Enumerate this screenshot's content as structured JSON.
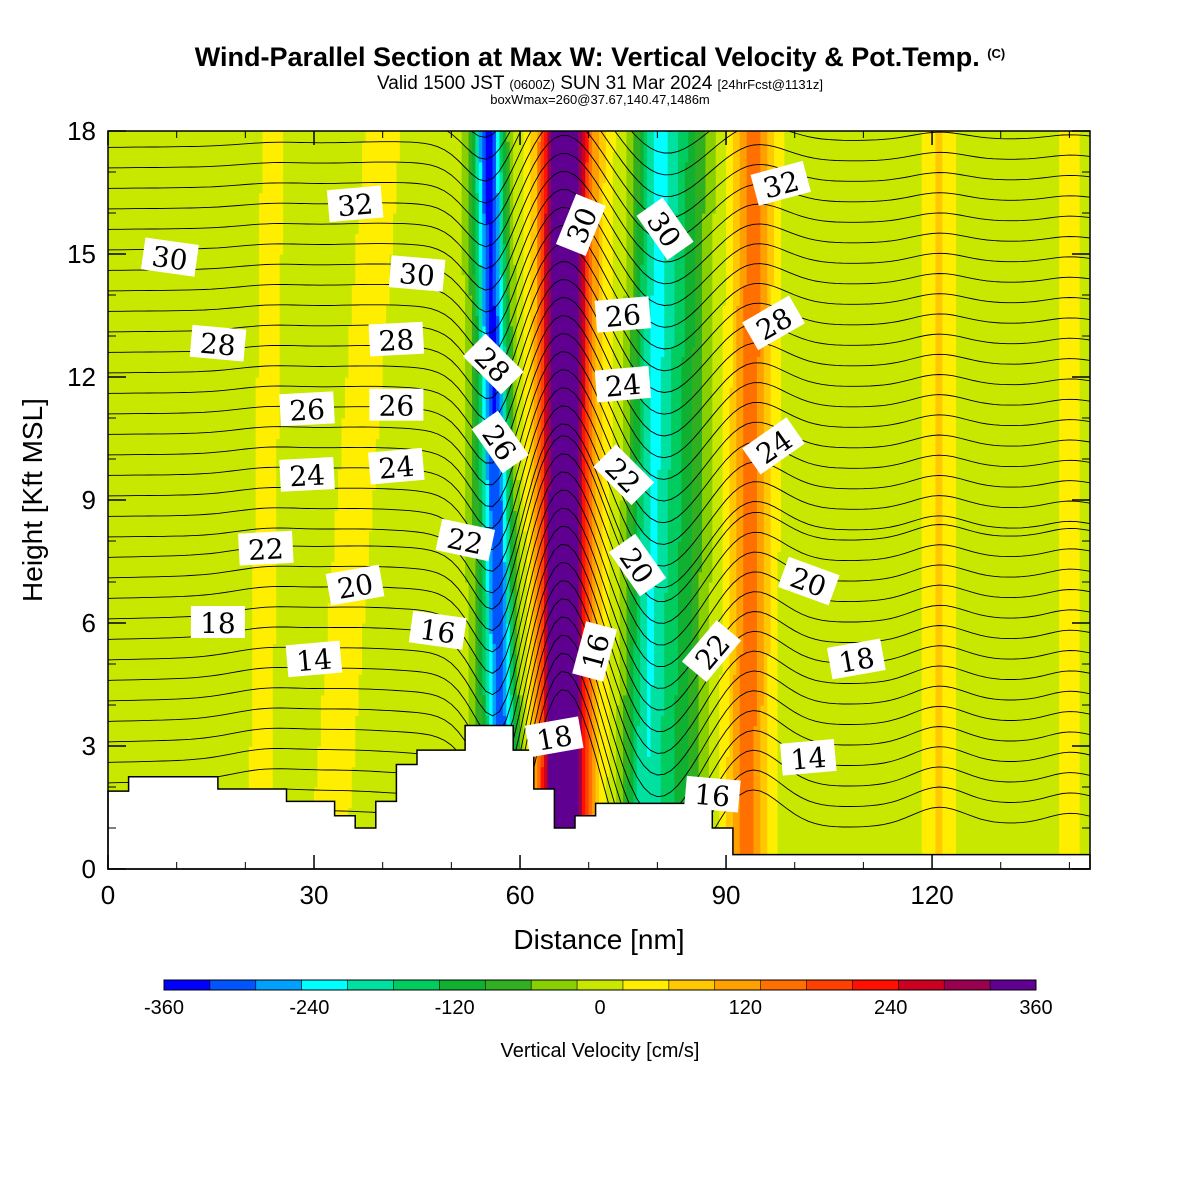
{
  "header": {
    "title": "Wind-Parallel Section at Max W: Vertical Velocity & Pot.Temp.",
    "copyright": "(C)",
    "valid_prefix": "Valid 1500 JST",
    "valid_utc": "(0600Z)",
    "valid_date": "SUN 31 Mar 2024",
    "forecast": "[24hrFcst@1131z]",
    "box_info": "boxWmax=260@37.67,140.47,1486m"
  },
  "chart_data": {
    "type": "heatmap",
    "title": "Wind-Parallel Section at Max W: Vertical Velocity & Pot.Temp.",
    "xlabel": "Distance [nm]",
    "ylabel": "Height [Kft MSL]",
    "xlim": [
      0,
      143
    ],
    "ylim": [
      0,
      18
    ],
    "x_ticks": [
      0,
      30,
      60,
      90,
      120
    ],
    "y_ticks": [
      0,
      3,
      6,
      9,
      12,
      15,
      18
    ],
    "x_tick_labels": [
      "0",
      "30",
      "60",
      "90",
      "120"
    ],
    "y_tick_labels": [
      "0",
      "3",
      "6",
      "9",
      "12",
      "15",
      "18"
    ],
    "colorbar": {
      "label": "Vertical Velocity [cm/s]",
      "range": [
        -360,
        360
      ],
      "tick_values": [
        -360,
        -240,
        -120,
        0,
        120,
        240,
        360
      ],
      "tick_labels": [
        "-360",
        "-240",
        "-120",
        "0",
        "120",
        "240",
        "360"
      ],
      "colors": [
        "#0000ff",
        "#0055ff",
        "#00a0ff",
        "#00ffff",
        "#00e0a0",
        "#00cc60",
        "#10b030",
        "#30b020",
        "#88d000",
        "#c8e800",
        "#ffee00",
        "#ffc800",
        "#ffa000",
        "#ff7000",
        "#ff4000",
        "#ff1000",
        "#cc0020",
        "#990050",
        "#600090"
      ]
    },
    "terrain": [
      [
        0,
        1.9
      ],
      [
        3,
        1.9
      ],
      [
        3,
        2.25
      ],
      [
        16,
        2.25
      ],
      [
        16,
        1.95
      ],
      [
        26,
        1.95
      ],
      [
        26,
        1.65
      ],
      [
        33,
        1.65
      ],
      [
        33,
        1.3
      ],
      [
        36,
        1.3
      ],
      [
        36,
        1.0
      ],
      [
        39,
        1.0
      ],
      [
        39,
        1.65
      ],
      [
        42,
        1.65
      ],
      [
        42,
        2.55
      ],
      [
        45,
        2.55
      ],
      [
        45,
        2.9
      ],
      [
        52,
        2.9
      ],
      [
        52,
        3.5
      ],
      [
        59,
        3.5
      ],
      [
        59,
        2.9
      ],
      [
        62,
        2.9
      ],
      [
        62,
        1.95
      ],
      [
        65,
        1.95
      ],
      [
        65,
        1.0
      ],
      [
        68,
        1.0
      ],
      [
        68,
        1.3
      ],
      [
        71,
        1.3
      ],
      [
        71,
        1.6
      ],
      [
        88,
        1.6
      ],
      [
        88,
        1.0
      ],
      [
        91,
        1.0
      ],
      [
        91,
        0.35
      ],
      [
        143,
        0.35
      ]
    ],
    "velocity_features": [
      {
        "x_bottom": 56,
        "x_top": 55,
        "center_cm_s": -110,
        "width_nm": 2.5
      },
      {
        "x_bottom": 58,
        "x_top": 55.5,
        "center_cm_s": -230,
        "width_nm": 2.0
      },
      {
        "x_bottom": 66,
        "x_top": 66,
        "center_cm_s": 330,
        "width_nm": 3.0
      },
      {
        "x_bottom": 67,
        "x_top": 68,
        "center_cm_s": 170,
        "width_nm": 4.0
      },
      {
        "x_bottom": 78,
        "x_top": 80,
        "center_cm_s": -190,
        "width_nm": 3.0
      },
      {
        "x_bottom": 83,
        "x_top": 84,
        "center_cm_s": -110,
        "width_nm": 3.5
      },
      {
        "x_bottom": 93,
        "x_top": 94,
        "center_cm_s": 150,
        "width_nm": 3.0
      },
      {
        "x_bottom": 32,
        "x_top": 40,
        "center_cm_s": 25,
        "width_nm": 5.0
      },
      {
        "x_bottom": 22,
        "x_top": 24,
        "center_cm_s": 25,
        "width_nm": 3.0
      },
      {
        "x_bottom": 121,
        "x_top": 121,
        "center_cm_s": 60,
        "width_nm": 2.5
      },
      {
        "x_bottom": 140,
        "x_top": 140,
        "center_cm_s": 30,
        "width_nm": 2.0
      }
    ],
    "theta_contour_labels": [
      {
        "text": "32",
        "x": 36,
        "y": 16.2,
        "angle": -5
      },
      {
        "text": "30",
        "x": 9,
        "y": 14.9,
        "angle": 8
      },
      {
        "text": "30",
        "x": 45,
        "y": 14.5,
        "angle": 5
      },
      {
        "text": "28",
        "x": 16,
        "y": 12.8,
        "angle": 5
      },
      {
        "text": "28",
        "x": 42,
        "y": 12.9,
        "angle": -3
      },
      {
        "text": "26",
        "x": 29,
        "y": 11.2,
        "angle": -3
      },
      {
        "text": "26",
        "x": 42,
        "y": 11.3,
        "angle": 0
      },
      {
        "text": "24",
        "x": 29,
        "y": 9.6,
        "angle": -3
      },
      {
        "text": "24",
        "x": 42,
        "y": 9.8,
        "angle": -5
      },
      {
        "text": "22",
        "x": 23,
        "y": 7.8,
        "angle": -3
      },
      {
        "text": "20",
        "x": 36,
        "y": 6.9,
        "angle": -10
      },
      {
        "text": "22",
        "x": 52,
        "y": 8.0,
        "angle": 12
      },
      {
        "text": "18",
        "x": 16,
        "y": 6.0,
        "angle": 0
      },
      {
        "text": "14",
        "x": 30,
        "y": 5.1,
        "angle": -5
      },
      {
        "text": "16",
        "x": 48,
        "y": 5.8,
        "angle": 8
      },
      {
        "text": "28",
        "x": 56,
        "y": 12.3,
        "angle": 45
      },
      {
        "text": "26",
        "x": 57,
        "y": 10.4,
        "angle": 55
      },
      {
        "text": "30",
        "x": 69,
        "y": 15.7,
        "angle": -68
      },
      {
        "text": "26",
        "x": 75,
        "y": 13.5,
        "angle": -5
      },
      {
        "text": "24",
        "x": 75,
        "y": 11.8,
        "angle": -5
      },
      {
        "text": "22",
        "x": 75,
        "y": 9.6,
        "angle": 45
      },
      {
        "text": "20",
        "x": 77,
        "y": 7.4,
        "angle": 55
      },
      {
        "text": "16",
        "x": 71,
        "y": 5.3,
        "angle": -75
      },
      {
        "text": "18",
        "x": 65,
        "y": 3.2,
        "angle": -10
      },
      {
        "text": "30",
        "x": 81,
        "y": 15.6,
        "angle": 55
      },
      {
        "text": "32",
        "x": 98,
        "y": 16.7,
        "angle": -15
      },
      {
        "text": "28",
        "x": 97,
        "y": 13.3,
        "angle": -30
      },
      {
        "text": "24",
        "x": 97,
        "y": 10.3,
        "angle": -35
      },
      {
        "text": "20",
        "x": 102,
        "y": 7.0,
        "angle": 20
      },
      {
        "text": "18",
        "x": 109,
        "y": 5.1,
        "angle": -10
      },
      {
        "text": "22",
        "x": 88,
        "y": 5.3,
        "angle": -50
      },
      {
        "text": "14",
        "x": 102,
        "y": 2.7,
        "angle": -5
      },
      {
        "text": "16",
        "x": 88,
        "y": 1.8,
        "angle": 5
      }
    ]
  }
}
